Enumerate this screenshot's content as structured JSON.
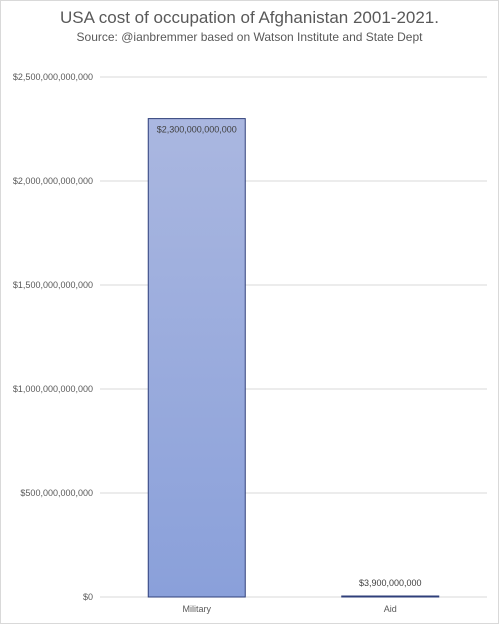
{
  "title": "USA cost of occupation of Afghanistan 2001-2021.",
  "subtitle": "Source: @ianbremmer based on Watson Institute and State Dept",
  "chart_data": {
    "type": "bar",
    "title": "USA cost of occupation of Afghanistan 2001-2021.",
    "subtitle": "Source: @ianbremmer based on Watson Institute and State Dept",
    "categories": [
      "Military",
      "Aid"
    ],
    "values": [
      2300000000000,
      3900000000
    ],
    "data_labels": [
      "$2,300,000,000,000",
      "$3,900,000,000"
    ],
    "ylim": [
      0,
      2500000000000
    ],
    "yticks": [
      0,
      500000000000,
      1000000000000,
      1500000000000,
      2000000000000,
      2500000000000
    ],
    "ytick_labels": [
      "$0",
      "$500,000,000,000",
      "$1,000,000,000,000",
      "$1,500,000,000,000",
      "$2,000,000,000,000",
      "$2,500,000,000,000"
    ],
    "grid": true,
    "legend": "none",
    "colors": {
      "bar_top": "#aab7e0",
      "bar_bottom": "#8aa0da",
      "bar_border": "#2f3f7a",
      "grid": "#d9d9d9"
    }
  }
}
